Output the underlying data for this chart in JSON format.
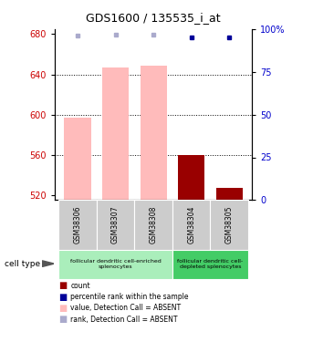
{
  "title": "GDS1600 / 135535_i_at",
  "samples": [
    "GSM38306",
    "GSM38307",
    "GSM38308",
    "GSM38304",
    "GSM38305"
  ],
  "ylim_left": [
    515,
    685
  ],
  "ylim_right": [
    0,
    100
  ],
  "yticks_left": [
    520,
    560,
    600,
    640,
    680
  ],
  "yticks_right": [
    0,
    25,
    50,
    75,
    100
  ],
  "bar_values": [
    597,
    647,
    649,
    560,
    527
  ],
  "bar_colors": [
    "#ffbbbb",
    "#ffbbbb",
    "#ffbbbb",
    "#990000",
    "#990000"
  ],
  "rank_dots_y": [
    96,
    97,
    97,
    95,
    95
  ],
  "rank_dot_colors": [
    "#aaaacc",
    "#aaaacc",
    "#aaaacc",
    "#000099",
    "#000099"
  ],
  "group_configs": [
    {
      "sample_indices": [
        0,
        1,
        2
      ],
      "color": "#aaeebb",
      "label": "follicular dendritic cell-enriched\nsplenocytes"
    },
    {
      "sample_indices": [
        3,
        4
      ],
      "color": "#44cc66",
      "label": "follicular dendritic cell-\ndepleted splenocytes"
    }
  ],
  "cell_type_label": "cell type",
  "legend_items": [
    {
      "color": "#990000",
      "label": "count"
    },
    {
      "color": "#000099",
      "label": "percentile rank within the sample"
    },
    {
      "color": "#ffbbbb",
      "label": "value, Detection Call = ABSENT"
    },
    {
      "color": "#aaaacc",
      "label": "rank, Detection Call = ABSENT"
    }
  ],
  "background_color": "#ffffff",
  "tick_label_color_left": "#cc0000",
  "tick_label_color_right": "#0000cc"
}
